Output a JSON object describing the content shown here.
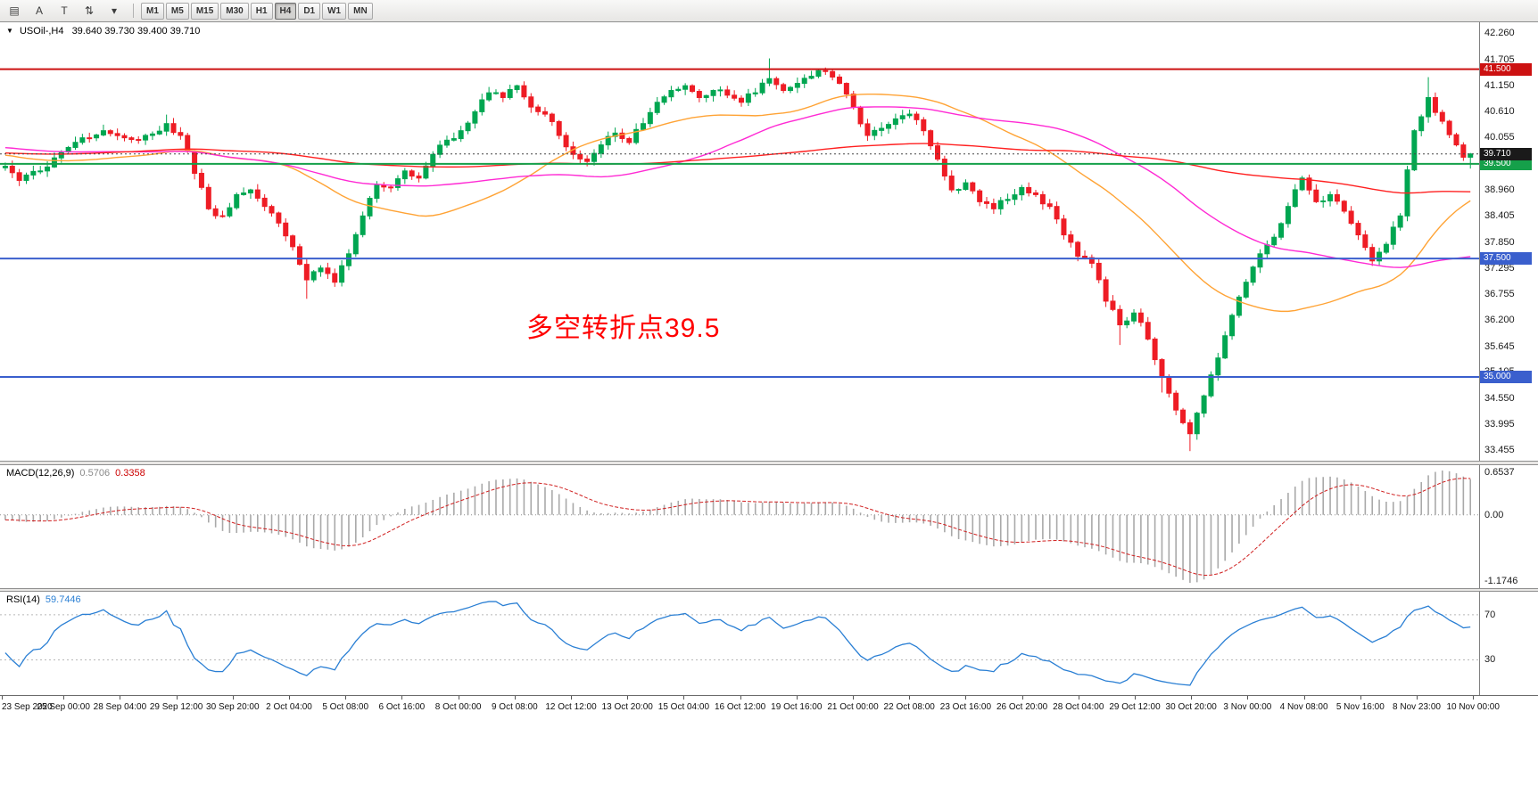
{
  "toolbar": {
    "icons": [
      {
        "name": "chart-list-icon",
        "glyph": "▤"
      },
      {
        "name": "cursor-a-icon",
        "glyph": "A"
      },
      {
        "name": "text-t-icon",
        "glyph": "T"
      },
      {
        "name": "updown-arrows-icon",
        "glyph": "⇅"
      },
      {
        "name": "dropdown-caret-icon",
        "glyph": "▾"
      }
    ],
    "timeframes": [
      "M1",
      "M5",
      "M15",
      "M30",
      "H1",
      "H4",
      "D1",
      "W1",
      "MN"
    ],
    "selected_timeframe": "H4"
  },
  "chart": {
    "symbol_label": "USOil-,H4",
    "ohlc_label": "39.640 39.730 39.400 39.710",
    "annotation": {
      "text": "多空转折点39.5",
      "color": "#ff0000"
    },
    "price_axis_ticks": [
      "42.260",
      "41.705",
      "41.150",
      "40.610",
      "40.055",
      "39.500",
      "38.960",
      "38.405",
      "37.850",
      "37.295",
      "36.755",
      "36.200",
      "35.645",
      "35.105",
      "34.550",
      "33.995",
      "33.455"
    ],
    "levels": [
      {
        "price": 41.5,
        "label": "41.500",
        "color": "#cc1111"
      },
      {
        "price": 39.5,
        "label": "39.500",
        "color": "#15a04a"
      },
      {
        "price": 37.5,
        "label": "37.500",
        "color": "#3a5fcd"
      },
      {
        "price": 35.0,
        "label": "35.000",
        "color": "#3a5fcd"
      }
    ],
    "current_price": {
      "value": 39.71,
      "label": "39.710",
      "color": "#1a1a1a"
    }
  },
  "macd": {
    "header": "MACD(12,26,9)",
    "value_main": "0.5706",
    "value_signal": "0.3358",
    "axis_ticks": [
      "0.6537",
      "0.00",
      "-1.1746"
    ],
    "histogram_color": "#a9a9a9",
    "signal_color": "#d02020"
  },
  "rsi": {
    "header": "RSI(14)",
    "value": "59.7446",
    "line_color": "#2a7fd4",
    "levels": [
      "70",
      "30"
    ]
  },
  "time_axis": [
    "23 Sep 2020",
    "25 Sep 00:00",
    "28 Sep 04:00",
    "29 Sep 12:00",
    "30 Sep 20:00",
    "2 Oct 04:00",
    "5 Oct 08:00",
    "6 Oct 16:00",
    "8 Oct 00:00",
    "9 Oct 08:00",
    "12 Oct 12:00",
    "13 Oct 20:00",
    "15 Oct 04:00",
    "16 Oct 12:00",
    "19 Oct 16:00",
    "21 Oct 00:00",
    "22 Oct 08:00",
    "23 Oct 16:00",
    "26 Oct 20:00",
    "28 Oct 04:00",
    "29 Oct 12:00",
    "30 Oct 20:00",
    "3 Nov 00:00",
    "4 Nov 08:00",
    "5 Nov 16:00",
    "8 Nov 23:00",
    "10 Nov 00:00"
  ],
  "chart_data": {
    "type": "candlestick",
    "symbol": "USOil",
    "timeframe": "H4",
    "ylim": [
      33.23,
      42.49
    ],
    "candle_count": 210,
    "up_color": "#00a651",
    "down_color": "#ee1c25",
    "close_waypoints": [
      [
        -130,
        40.3
      ],
      [
        -100,
        39.2
      ],
      [
        -70,
        39.9
      ],
      [
        -40,
        40.1
      ],
      [
        -15,
        39.6
      ],
      [
        0,
        39.45
      ],
      [
        2,
        39.15
      ],
      [
        5,
        39.35
      ],
      [
        8,
        39.75
      ],
      [
        11,
        40.05
      ],
      [
        14,
        40.2
      ],
      [
        17,
        40.05
      ],
      [
        20,
        40.1
      ],
      [
        23,
        40.35
      ],
      [
        25,
        40.1
      ],
      [
        27,
        39.3
      ],
      [
        29,
        38.55
      ],
      [
        31,
        38.4
      ],
      [
        33,
        38.85
      ],
      [
        35,
        38.95
      ],
      [
        37,
        38.6
      ],
      [
        39,
        38.25
      ],
      [
        41,
        37.75
      ],
      [
        43,
        37.05
      ],
      [
        45,
        37.3
      ],
      [
        47,
        37.0
      ],
      [
        49,
        37.6
      ],
      [
        51,
        38.4
      ],
      [
        53,
        39.05
      ],
      [
        55,
        39.0
      ],
      [
        57,
        39.35
      ],
      [
        59,
        39.2
      ],
      [
        61,
        39.7
      ],
      [
        63,
        40.0
      ],
      [
        65,
        40.2
      ],
      [
        67,
        40.6
      ],
      [
        69,
        41.0
      ],
      [
        71,
        40.9
      ],
      [
        73,
        41.15
      ],
      [
        75,
        40.7
      ],
      [
        77,
        40.55
      ],
      [
        79,
        40.1
      ],
      [
        81,
        39.7
      ],
      [
        83,
        39.55
      ],
      [
        85,
        39.9
      ],
      [
        87,
        40.15
      ],
      [
        89,
        39.95
      ],
      [
        91,
        40.35
      ],
      [
        93,
        40.8
      ],
      [
        95,
        41.05
      ],
      [
        97,
        41.15
      ],
      [
        99,
        40.9
      ],
      [
        101,
        41.05
      ],
      [
        103,
        40.95
      ],
      [
        105,
        40.8
      ],
      [
        107,
        41.0
      ],
      [
        109,
        41.3
      ],
      [
        111,
        41.05
      ],
      [
        113,
        41.2
      ],
      [
        115,
        41.35
      ],
      [
        117,
        41.45
      ],
      [
        119,
        41.2
      ],
      [
        121,
        40.7
      ],
      [
        123,
        40.1
      ],
      [
        125,
        40.25
      ],
      [
        127,
        40.45
      ],
      [
        129,
        40.55
      ],
      [
        131,
        40.2
      ],
      [
        133,
        39.6
      ],
      [
        135,
        38.95
      ],
      [
        137,
        39.1
      ],
      [
        139,
        38.7
      ],
      [
        141,
        38.55
      ],
      [
        143,
        38.75
      ],
      [
        145,
        39.0
      ],
      [
        147,
        38.85
      ],
      [
        149,
        38.6
      ],
      [
        151,
        38.0
      ],
      [
        153,
        37.55
      ],
      [
        155,
        37.4
      ],
      [
        157,
        36.6
      ],
      [
        159,
        36.1
      ],
      [
        161,
        36.35
      ],
      [
        163,
        35.8
      ],
      [
        165,
        35.0
      ],
      [
        167,
        34.3
      ],
      [
        169,
        33.8
      ],
      [
        171,
        34.6
      ],
      [
        173,
        35.4
      ],
      [
        175,
        36.3
      ],
      [
        177,
        37.0
      ],
      [
        179,
        37.6
      ],
      [
        181,
        37.95
      ],
      [
        183,
        38.6
      ],
      [
        185,
        39.2
      ],
      [
        187,
        38.7
      ],
      [
        189,
        38.85
      ],
      [
        191,
        38.5
      ],
      [
        193,
        38.0
      ],
      [
        195,
        37.45
      ],
      [
        197,
        37.8
      ],
      [
        199,
        38.4
      ],
      [
        201,
        40.2
      ],
      [
        203,
        40.9
      ],
      [
        205,
        40.4
      ],
      [
        207,
        39.9
      ],
      [
        208,
        39.64
      ],
      [
        209,
        39.71
      ]
    ],
    "wick_spikes": {
      "23": [
        0.15,
        0
      ],
      "43": [
        0,
        0.35
      ],
      "109": [
        0.4,
        0
      ],
      "159": [
        0,
        0.38
      ],
      "165": [
        0,
        0.22
      ],
      "169": [
        0,
        0.28
      ],
      "203": [
        0.32,
        0
      ]
    },
    "last_candle": {
      "open": 39.64,
      "high": 39.73,
      "low": 39.4,
      "close": 39.71
    },
    "moving_averages": [
      {
        "period": 34,
        "color": "#ffa335",
        "name": "MA34-orange"
      },
      {
        "period": 60,
        "color": "#ff2ad4",
        "name": "MA60-magenta"
      },
      {
        "period": 120,
        "color": "#ff2020",
        "name": "MA120-red"
      }
    ],
    "macd_params": [
      12,
      26,
      9
    ],
    "rsi_period": 14
  }
}
